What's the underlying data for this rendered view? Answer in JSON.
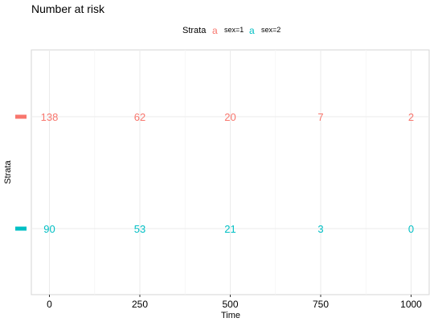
{
  "chart_data": {
    "type": "table",
    "title": "Number at risk",
    "xlabel": "Time",
    "ylabel": "Strata",
    "xlim": [
      -50,
      1050
    ],
    "x_ticks": [
      0,
      250,
      500,
      750,
      1000
    ],
    "x_tick_labels": [
      "0",
      "250",
      "500",
      "750",
      "1000"
    ],
    "grid": true,
    "legend": {
      "title": "Strata",
      "position": "top",
      "key_glyph": "a",
      "entries": [
        "sex=1",
        "sex=2"
      ]
    },
    "series": [
      {
        "name": "sex=1",
        "color": "#F8766D",
        "x": [
          0,
          250,
          500,
          750,
          1000
        ],
        "values": [
          138,
          62,
          20,
          7,
          2
        ]
      },
      {
        "name": "sex=2",
        "color": "#00BFC4",
        "x": [
          0,
          250,
          500,
          750,
          1000
        ],
        "values": [
          90,
          53,
          21,
          3,
          0
        ]
      }
    ]
  }
}
